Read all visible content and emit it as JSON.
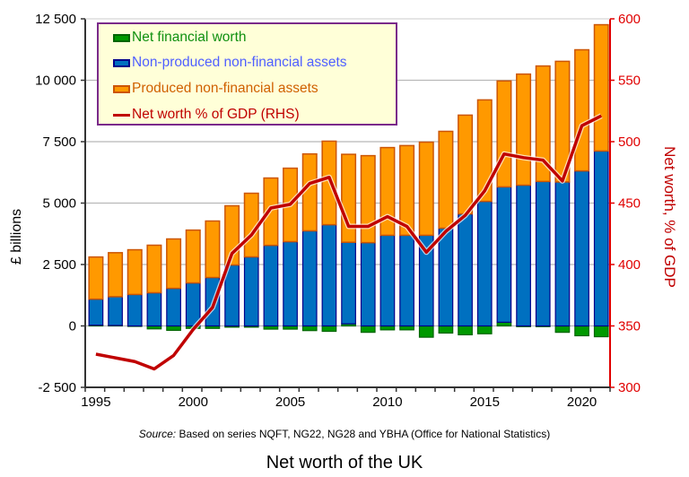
{
  "chart_data": {
    "type": "bar",
    "title": "Net worth of the UK",
    "source_label": "Source:",
    "source_text": " Based on series NQFT, NG22, NG28 and YBHA (Office for National Statistics)",
    "ylabel": "£ billions",
    "y2label": "Net worth, % of GDP",
    "ylim": [
      -2500,
      12500
    ],
    "y2lim": [
      300,
      600
    ],
    "yticks": [
      "-2 500",
      "0",
      "2 500",
      "5 000",
      "7 500",
      "10 000",
      "12 500"
    ],
    "yticks_values": [
      -2500,
      0,
      2500,
      5000,
      7500,
      10000,
      12500
    ],
    "y2ticks": [
      "300",
      "350",
      "400",
      "450",
      "500",
      "550",
      "600"
    ],
    "y2ticks_values": [
      300,
      350,
      400,
      450,
      500,
      550,
      600
    ],
    "xtick_labels": [
      "1995",
      "2000",
      "2005",
      "2010",
      "2015",
      "2020"
    ],
    "grid": true,
    "legend_placement": "top-left",
    "categories": [
      1995,
      1996,
      1997,
      1998,
      1999,
      2000,
      2001,
      2002,
      2003,
      2004,
      2005,
      2006,
      2007,
      2008,
      2009,
      2010,
      2011,
      2012,
      2013,
      2014,
      2015,
      2016,
      2017,
      2018,
      2019,
      2020,
      2021
    ],
    "series": [
      {
        "name": "Net financial worth",
        "type": "bar",
        "color": "#009900",
        "border": "#006400",
        "values": [
          30,
          20,
          -20,
          -120,
          -180,
          -100,
          -100,
          -50,
          -50,
          -130,
          -130,
          -190,
          -220,
          85,
          -260,
          -160,
          -160,
          -460,
          -290,
          -360,
          -320,
          150,
          -30,
          -30,
          -260,
          -400,
          -440
        ]
      },
      {
        "name": "Non-produced non-financial assets",
        "type": "bar",
        "color": "#0070c0",
        "border": "#00008b",
        "values": [
          1060,
          1170,
          1280,
          1350,
          1530,
          1750,
          1970,
          2480,
          2810,
          3280,
          3430,
          3870,
          4120,
          3320,
          3390,
          3690,
          3690,
          3690,
          3980,
          4560,
          5070,
          5510,
          5730,
          5880,
          5860,
          6310,
          7120
        ]
      },
      {
        "name": "Produced non-financial assets",
        "type": "bar",
        "color": "#ff9900",
        "border": "#cc5500",
        "values": [
          1715,
          1790,
          1820,
          1935,
          2010,
          2150,
          2300,
          2410,
          2590,
          2740,
          2990,
          3130,
          3400,
          3580,
          3540,
          3570,
          3650,
          3790,
          3940,
          4020,
          4130,
          4310,
          4520,
          4700,
          4910,
          4930,
          5140
        ]
      },
      {
        "name": "Net worth % of GDP (RHS)",
        "type": "line",
        "axis": "right",
        "color": "#c00000",
        "values": [
          327,
          324,
          321,
          315,
          326,
          347,
          365,
          409,
          424,
          446,
          449,
          466,
          471,
          431,
          431,
          439,
          431,
          410,
          427,
          440,
          460,
          490,
          487,
          485,
          468,
          513,
          521
        ]
      }
    ],
    "legend_text_colors": [
      "#109010",
      "#4f5fff",
      "#d06000",
      "#c00000"
    ]
  }
}
